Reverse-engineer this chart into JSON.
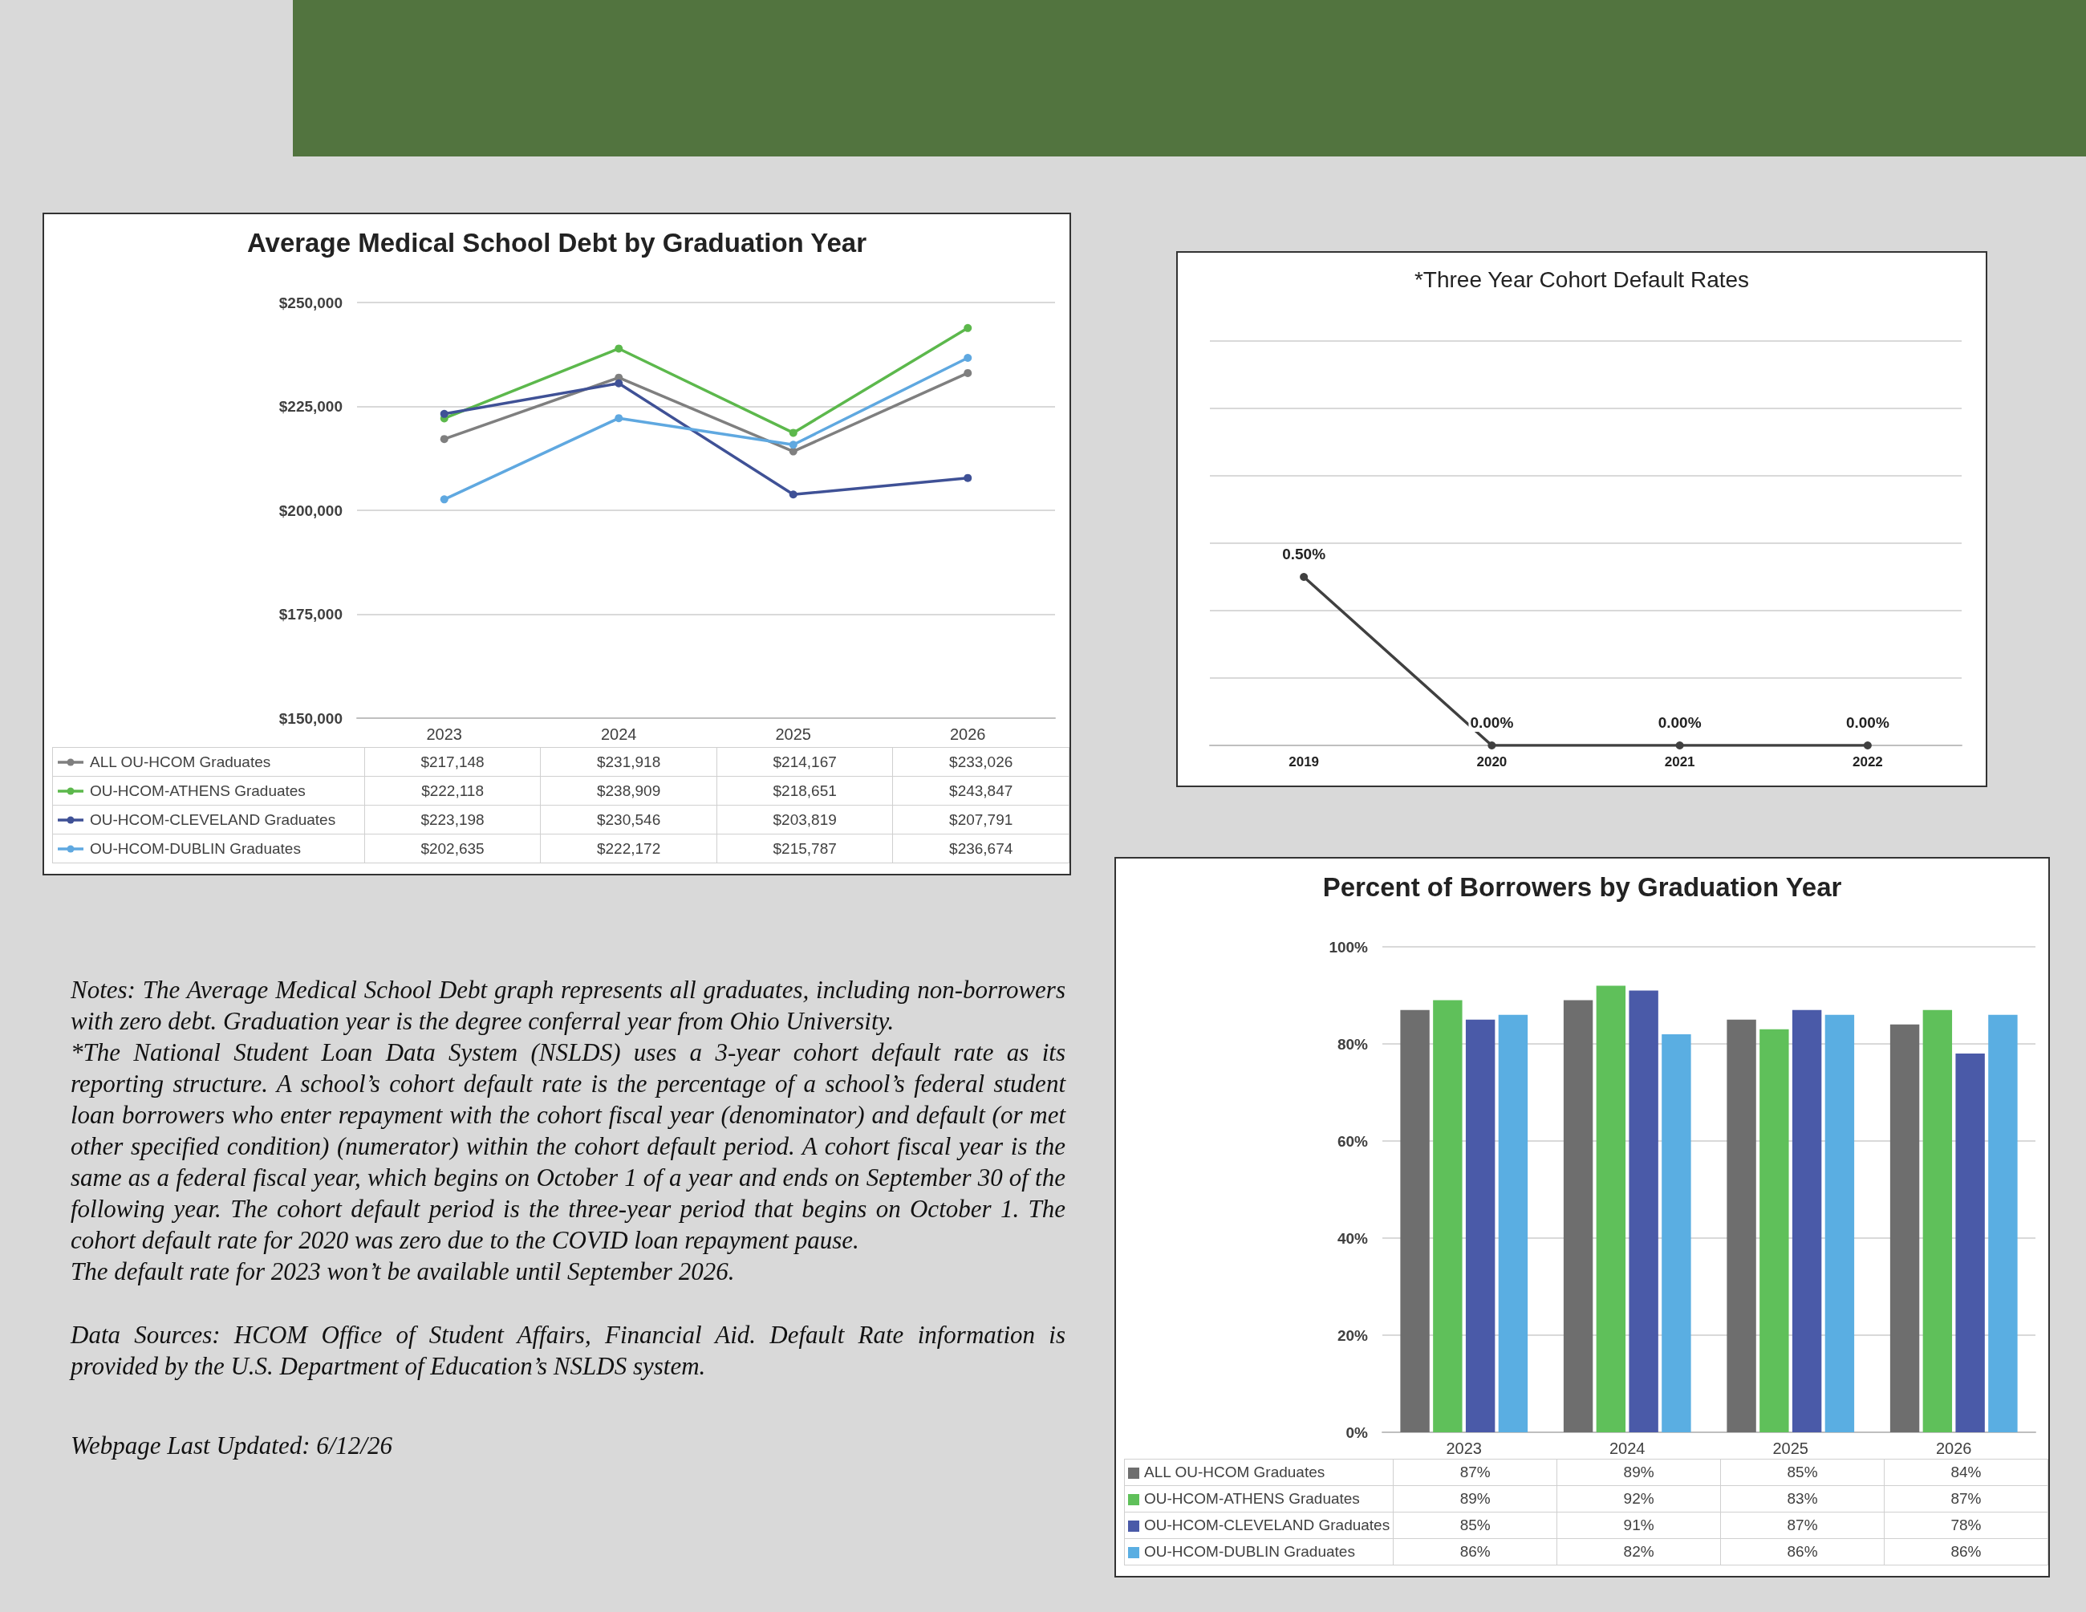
{
  "chart_data": [
    {
      "type": "line",
      "title": "Average Medical School Debt by Graduation Year",
      "categories": [
        "2023",
        "2024",
        "2025",
        "2026"
      ],
      "ylim": [
        150000,
        250000
      ],
      "yticks": [
        {
          "value": 150000,
          "label": "$150,000"
        },
        {
          "value": 175000,
          "label": "$175,000"
        },
        {
          "value": 200000,
          "label": "$200,000"
        },
        {
          "value": 225000,
          "label": "$225,000"
        },
        {
          "value": 250000,
          "label": "$250,000"
        }
      ],
      "grid": "y",
      "legend": "bottom",
      "marker": "circle",
      "series": [
        {
          "name": "ALL OU-HCOM Graduates",
          "color": "#7f7f7f",
          "values": [
            217148,
            231918,
            214167,
            233026
          ],
          "value_labels": [
            "$217,148",
            "$231,918",
            "$214,167",
            "$233,026"
          ]
        },
        {
          "name": "OU-HCOM-ATHENS Graduates",
          "color": "#5cb84c",
          "values": [
            222118,
            238909,
            218651,
            243847
          ],
          "value_labels": [
            "$222,118",
            "$238,909",
            "$218,651",
            "$243,847"
          ]
        },
        {
          "name": "OU-HCOM-CLEVELAND Graduates",
          "color": "#3f5196",
          "values": [
            223198,
            230546,
            203819,
            207791
          ],
          "value_labels": [
            "$223,198",
            "$230,546",
            "$203,819",
            "$207,791"
          ]
        },
        {
          "name": "OU-HCOM-DUBLIN Graduates",
          "color": "#5fa8e0",
          "values": [
            202635,
            222172,
            215787,
            236674
          ],
          "value_labels": [
            "$202,635",
            "$222,172",
            "$215,787",
            "$236,674"
          ]
        }
      ]
    },
    {
      "type": "line",
      "title": "*Three Year Cohort Default Rates",
      "categories": [
        "2019",
        "2020",
        "2021",
        "2022"
      ],
      "values": [
        0.5,
        0,
        0,
        0
      ],
      "value_labels": [
        "0.50%",
        "0.00%",
        "0.00%",
        "0.00%"
      ],
      "color": "#404040",
      "ylim": [
        0,
        1.2
      ],
      "yticks": [
        {
          "value": 0,
          "label": null
        },
        {
          "value": 0.2,
          "label": null
        },
        {
          "value": 0.4,
          "label": null
        },
        {
          "value": 0.6,
          "label": null
        },
        {
          "value": 0.8,
          "label": null
        },
        {
          "value": 1,
          "label": null
        },
        {
          "value": 1.2,
          "label": null
        }
      ],
      "tick_labels": "x",
      "grid": "y",
      "marker": "circle"
    },
    {
      "type": "bar",
      "title": "Percent of Borrowers by Graduation Year",
      "categories": [
        "2023",
        "2024",
        "2025",
        "2026"
      ],
      "ylim": [
        0,
        100
      ],
      "yticks": [
        {
          "value": 0,
          "label": "0%"
        },
        {
          "value": 20,
          "label": "20%"
        },
        {
          "value": 40,
          "label": "40%"
        },
        {
          "value": 60,
          "label": "60%"
        },
        {
          "value": 80,
          "label": "80%"
        },
        {
          "value": 100,
          "label": "100%"
        }
      ],
      "grid": "y",
      "legend": "bottom",
      "series": [
        {
          "name": "ALL OU-HCOM Graduates",
          "color": "#6e6e6e",
          "values": [
            87,
            89,
            85,
            84
          ],
          "value_labels": [
            "87%",
            "89%",
            "85%",
            "84%"
          ]
        },
        {
          "name": "OU-HCOM-ATHENS Graduates",
          "color": "#5fc05a",
          "values": [
            89,
            92,
            83,
            87
          ],
          "value_labels": [
            "89%",
            "92%",
            "83%",
            "87%"
          ]
        },
        {
          "name": "OU-HCOM-CLEVELAND Graduates",
          "color": "#4a5aa8",
          "values": [
            85,
            91,
            87,
            78
          ],
          "value_labels": [
            "85%",
            "91%",
            "87%",
            "78%"
          ]
        },
        {
          "name": "OU-HCOM-DUBLIN Graduates",
          "color": "#5aaee2",
          "values": [
            86,
            82,
            86,
            86
          ],
          "value_labels": [
            "86%",
            "82%",
            "86%",
            "86%"
          ]
        }
      ]
    },
    {
      "type": "other",
      "annotations": [
        "Notes: The Average Medical School Debt graph represents all graduates, including non-borrowers with zero debt. Graduation year is the degree conferral year from Ohio University.",
        "*The National Student Loan Data System (NSLDS) uses a 3-year cohort default rate as its reporting structure. A school’s cohort default rate is the percentage of a school’s federal student loan borrowers who enter repayment with the cohort fiscal year (denominator) and default (or met other specified condition) (numerator) within the cohort default period. A cohort fiscal year is the same as a federal fiscal year, which begins on October 1 of a year and ends on September 30 of the following year. The cohort default period is the three-year period that begins on October 1. The cohort default rate for 2020 was zero due to the COVID loan repayment pause.",
        "The default rate for 2023 won’t be available until September 2026.",
        "Data Sources: HCOM Office of Student Affairs, Financial Aid. Default Rate information is provided by the U.S. Department of Education’s NSLDS system.",
        "Webpage Last Updated: 6/12/26"
      ]
    }
  ]
}
